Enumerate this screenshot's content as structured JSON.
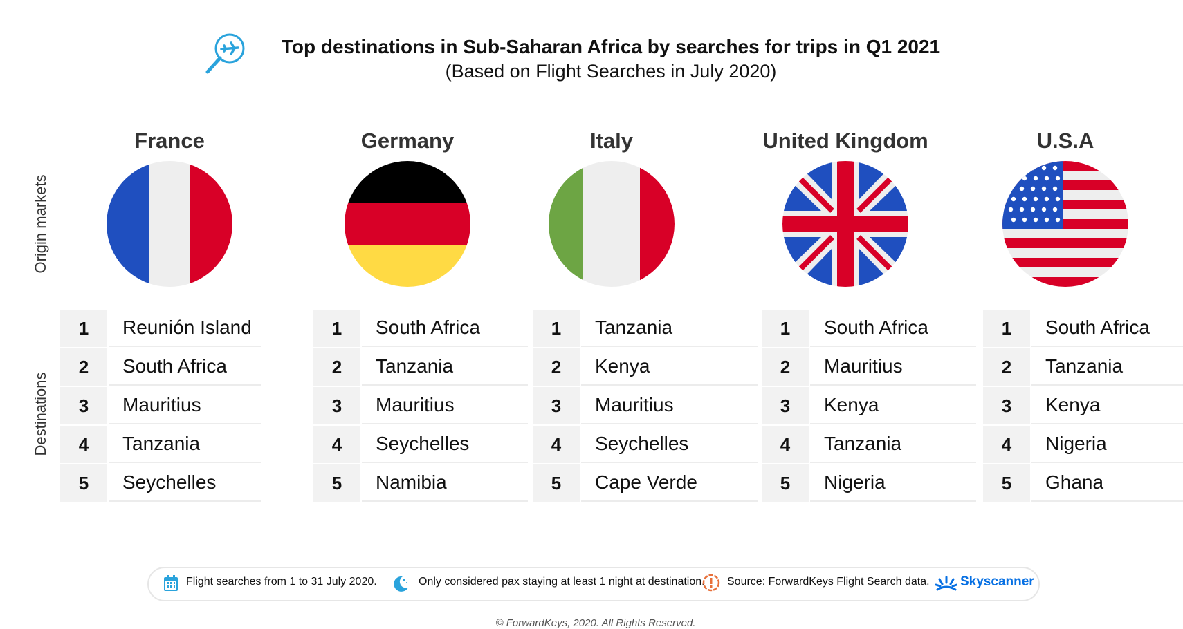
{
  "header": {
    "title": "Top destinations in Sub-Saharan Africa by searches for trips in Q1 2021",
    "subtitle": "(Based on Flight Searches in July 2020)",
    "icon": "search-plane-icon"
  },
  "side_labels": {
    "origin": "Origin markets",
    "destinations": "Destinations"
  },
  "chart_data": {
    "type": "table",
    "title": "Top destinations in Sub-Saharan Africa by searches for trips in Q1 2021",
    "subtitle": "(Based on Flight Searches in July 2020)",
    "row_header": "Origin markets",
    "column_header": "Destinations",
    "ranks": [
      "1",
      "2",
      "3",
      "4",
      "5"
    ],
    "markets": [
      {
        "name": "France",
        "flag": "france-flag-icon",
        "destinations": [
          "Reunión Island",
          "South Africa",
          "Mauritius",
          "Tanzania",
          "Seychelles"
        ]
      },
      {
        "name": "Germany",
        "flag": "germany-flag-icon",
        "destinations": [
          "South Africa",
          "Tanzania",
          "Mauritius",
          "Seychelles",
          "Namibia"
        ]
      },
      {
        "name": "Italy",
        "flag": "italy-flag-icon",
        "destinations": [
          "Tanzania",
          "Kenya",
          "Mauritius",
          "Seychelles",
          "Cape Verde"
        ]
      },
      {
        "name": "United Kingdom",
        "flag": "uk-flag-icon",
        "destinations": [
          "South Africa",
          "Mauritius",
          "Kenya",
          "Tanzania",
          "Nigeria"
        ]
      },
      {
        "name": "U.S.A",
        "flag": "usa-flag-icon",
        "destinations": [
          "South Africa",
          "Tanzania",
          "Kenya",
          "Nigeria",
          "Ghana"
        ]
      }
    ]
  },
  "footer": {
    "items": [
      {
        "icon": "calendar-icon",
        "text": "Flight searches from 1 to 31 July 2020."
      },
      {
        "icon": "moon-icon",
        "text": "Only considered pax staying at least 1 night at destination."
      },
      {
        "icon": "alert-icon",
        "text": "Source: ForwardKeys Flight Search data."
      }
    ],
    "brand": "Skyscanner",
    "brand_icon": "skyscanner-sun-icon",
    "copyright": "© ForwardKeys, 2020. All Rights Reserved."
  },
  "colors": {
    "accent_blue": "#1f9bd6",
    "brand_blue": "#0770e3",
    "cell_gray": "#f2f2f2",
    "alert_orange": "#e8703a"
  }
}
